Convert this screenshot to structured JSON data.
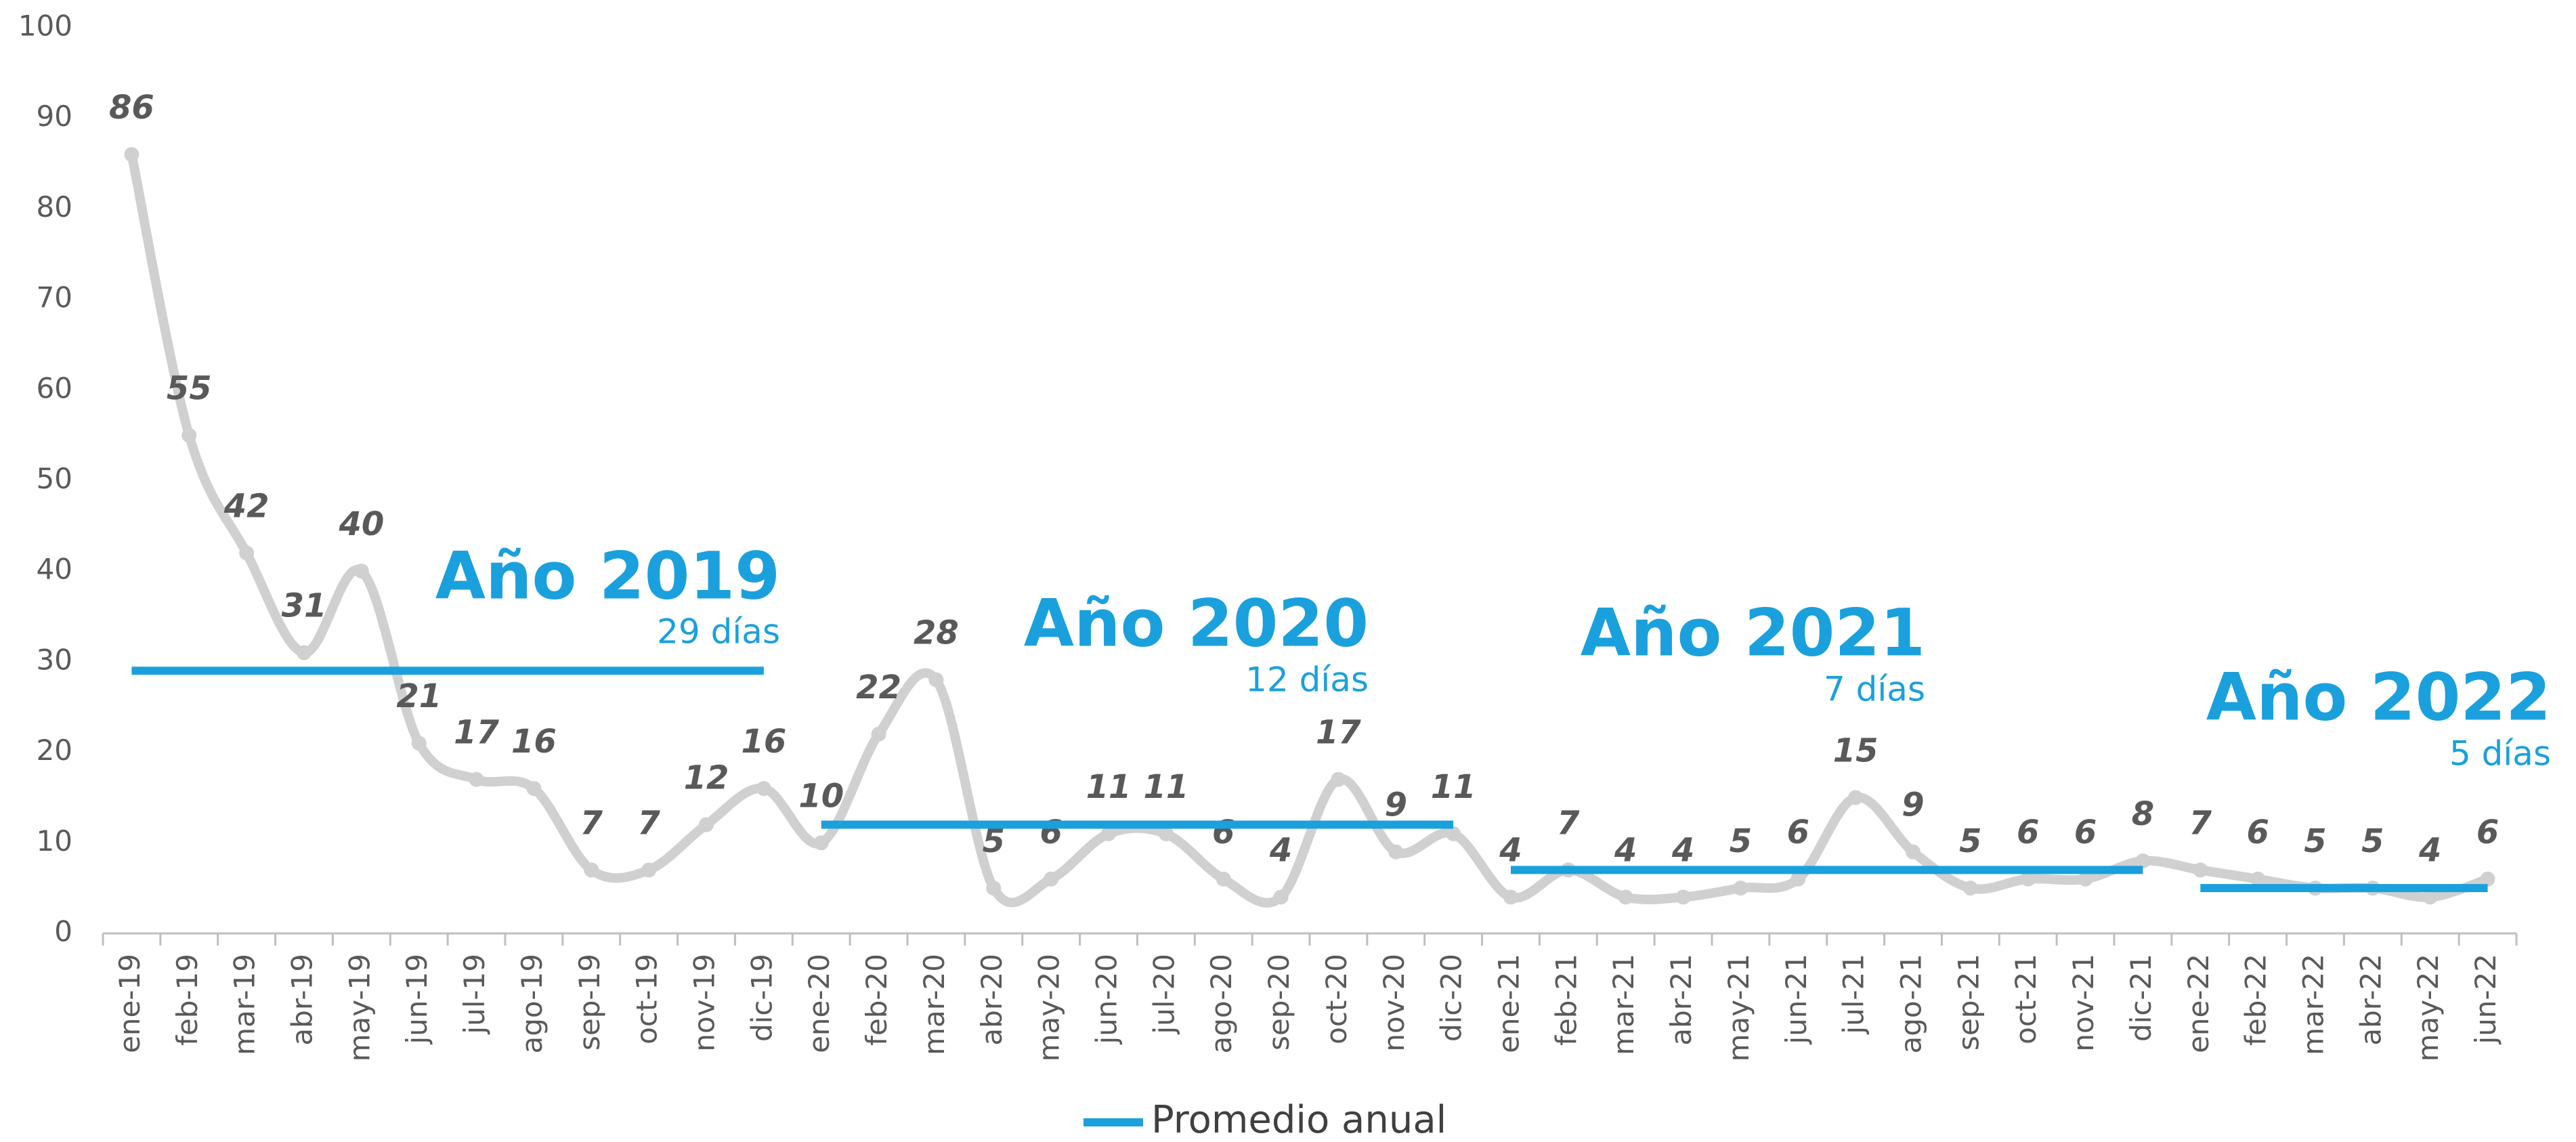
{
  "chart_data": {
    "type": "line",
    "categories": [
      "ene-19",
      "feb-19",
      "mar-19",
      "abr-19",
      "may-19",
      "jun-19",
      "jul-19",
      "ago-19",
      "sep-19",
      "oct-19",
      "nov-19",
      "dic-19",
      "ene-20",
      "feb-20",
      "mar-20",
      "abr-20",
      "may-20",
      "jun-20",
      "jul-20",
      "ago-20",
      "sep-20",
      "oct-20",
      "nov-20",
      "dic-20",
      "ene-21",
      "feb-21",
      "mar-21",
      "abr-21",
      "may-21",
      "jun-21",
      "jul-21",
      "ago-21",
      "sep-21",
      "oct-21",
      "nov-21",
      "dic-21",
      "ene-22",
      "feb-22",
      "mar-22",
      "abr-22",
      "may-22",
      "jun-22"
    ],
    "series": [
      {
        "color": "#d0d0d0",
        "values": [
          86,
          55,
          42,
          31,
          40,
          21,
          17,
          16,
          7,
          7,
          12,
          16,
          10,
          22,
          28,
          5,
          6,
          11,
          11,
          6,
          4,
          17,
          9,
          11,
          4,
          7,
          4,
          4,
          5,
          6,
          15,
          9,
          5,
          6,
          6,
          8,
          7,
          6,
          5,
          5,
          4,
          6
        ]
      }
    ],
    "averages": [
      {
        "title": "Año 2019",
        "value": 29,
        "value_label": "29 días",
        "from": "ene-19",
        "to": "dic-19"
      },
      {
        "title": "Año 2020",
        "value": 12,
        "value_label": "12 días",
        "from": "ene-20",
        "to": "dic-20"
      },
      {
        "title": "Año 2021",
        "value": 7,
        "value_label": "7 días",
        "from": "ene-21",
        "to": "dic-21"
      },
      {
        "title": "Año 2022",
        "value": 5,
        "value_label": "5 días",
        "from": "ene-22",
        "to": "jun-22"
      }
    ],
    "average_color": "#1aa0dc",
    "legend": "Promedio anual",
    "ylim": [
      0,
      100
    ],
    "yticks": [
      0,
      10,
      20,
      30,
      40,
      50,
      60,
      70,
      80,
      90,
      100
    ]
  }
}
